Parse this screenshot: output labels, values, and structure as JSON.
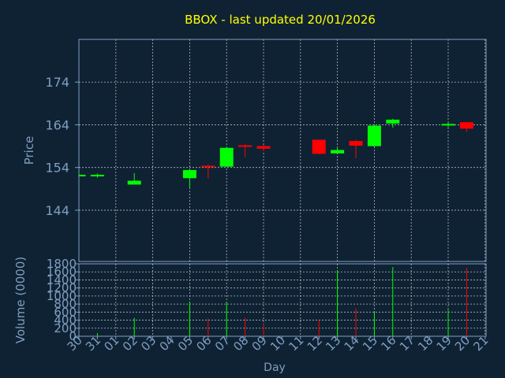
{
  "colors": {
    "background": "#0f2233",
    "axis": "#7f9fc0",
    "grid": "#c9d3de",
    "title": "#ffff00",
    "up": "#00ff00",
    "down": "#ff0000"
  },
  "chart_data": {
    "type": "candlestick",
    "title": "BBOX - last updated 20/01/2026",
    "price_panel": {
      "ylabel": "Price",
      "ylim": [
        132,
        184
      ],
      "yticks": [
        144,
        154,
        164,
        174
      ],
      "grid": true
    },
    "volume_panel": {
      "ylabel": "Volume (0000)",
      "ylim": [
        0,
        1800
      ],
      "yticks": [
        0,
        200,
        400,
        600,
        800,
        1000,
        1200,
        1400,
        1600,
        1800
      ],
      "ytick_labels": [
        "0",
        "200",
        "400",
        "600",
        "800",
        "1000",
        "1200",
        "1400",
        "1600",
        "1800"
      ],
      "grid": true
    },
    "xlabel": "Day",
    "x_ticks": [
      "30",
      "31",
      "01",
      "02",
      "03",
      "04",
      "05",
      "06",
      "07",
      "08",
      "09",
      "10",
      "11",
      "12",
      "13",
      "14",
      "15",
      "16",
      "17",
      "18",
      "19",
      "20",
      "21"
    ],
    "candles": [
      {
        "day": "30",
        "open": 152.0,
        "close": 152.3,
        "high": 152.4,
        "low": 151.9,
        "volume": 0
      },
      {
        "day": "31",
        "open": 152.0,
        "close": 152.3,
        "high": 152.6,
        "low": 151.6,
        "volume": 80
      },
      {
        "day": "02",
        "open": 150.0,
        "close": 150.9,
        "high": 152.7,
        "low": 150.0,
        "volume": 460
      },
      {
        "day": "05",
        "open": 151.5,
        "close": 153.4,
        "high": 153.5,
        "low": 149.2,
        "volume": 860
      },
      {
        "day": "06",
        "open": 154.4,
        "close": 154.1,
        "high": 154.7,
        "low": 151.5,
        "volume": 440
      },
      {
        "day": "07",
        "open": 154.2,
        "close": 158.6,
        "high": 158.7,
        "low": 154.2,
        "volume": 840
      },
      {
        "day": "08",
        "open": 159.2,
        "close": 158.9,
        "high": 159.4,
        "low": 156.5,
        "volume": 460
      },
      {
        "day": "09",
        "open": 159.0,
        "close": 158.4,
        "high": 159.3,
        "low": 157.8,
        "volume": 300
      },
      {
        "day": "12",
        "open": 160.5,
        "close": 157.2,
        "high": 160.5,
        "low": 157.1,
        "volume": 400
      },
      {
        "day": "13",
        "open": 157.3,
        "close": 158.1,
        "high": 158.6,
        "low": 157.3,
        "volume": 1640
      },
      {
        "day": "14",
        "open": 160.2,
        "close": 159.1,
        "high": 160.5,
        "low": 156.2,
        "volume": 700
      },
      {
        "day": "15",
        "open": 159.0,
        "close": 163.8,
        "high": 163.8,
        "low": 158.9,
        "volume": 600
      },
      {
        "day": "16",
        "open": 164.3,
        "close": 165.2,
        "high": 165.4,
        "low": 163.3,
        "volume": 1720
      },
      {
        "day": "19",
        "open": 163.9,
        "close": 164.2,
        "high": 164.5,
        "low": 163.4,
        "volume": 660
      },
      {
        "day": "20",
        "open": 164.6,
        "close": 163.1,
        "high": 164.7,
        "low": 162.3,
        "volume": 1700
      }
    ]
  }
}
